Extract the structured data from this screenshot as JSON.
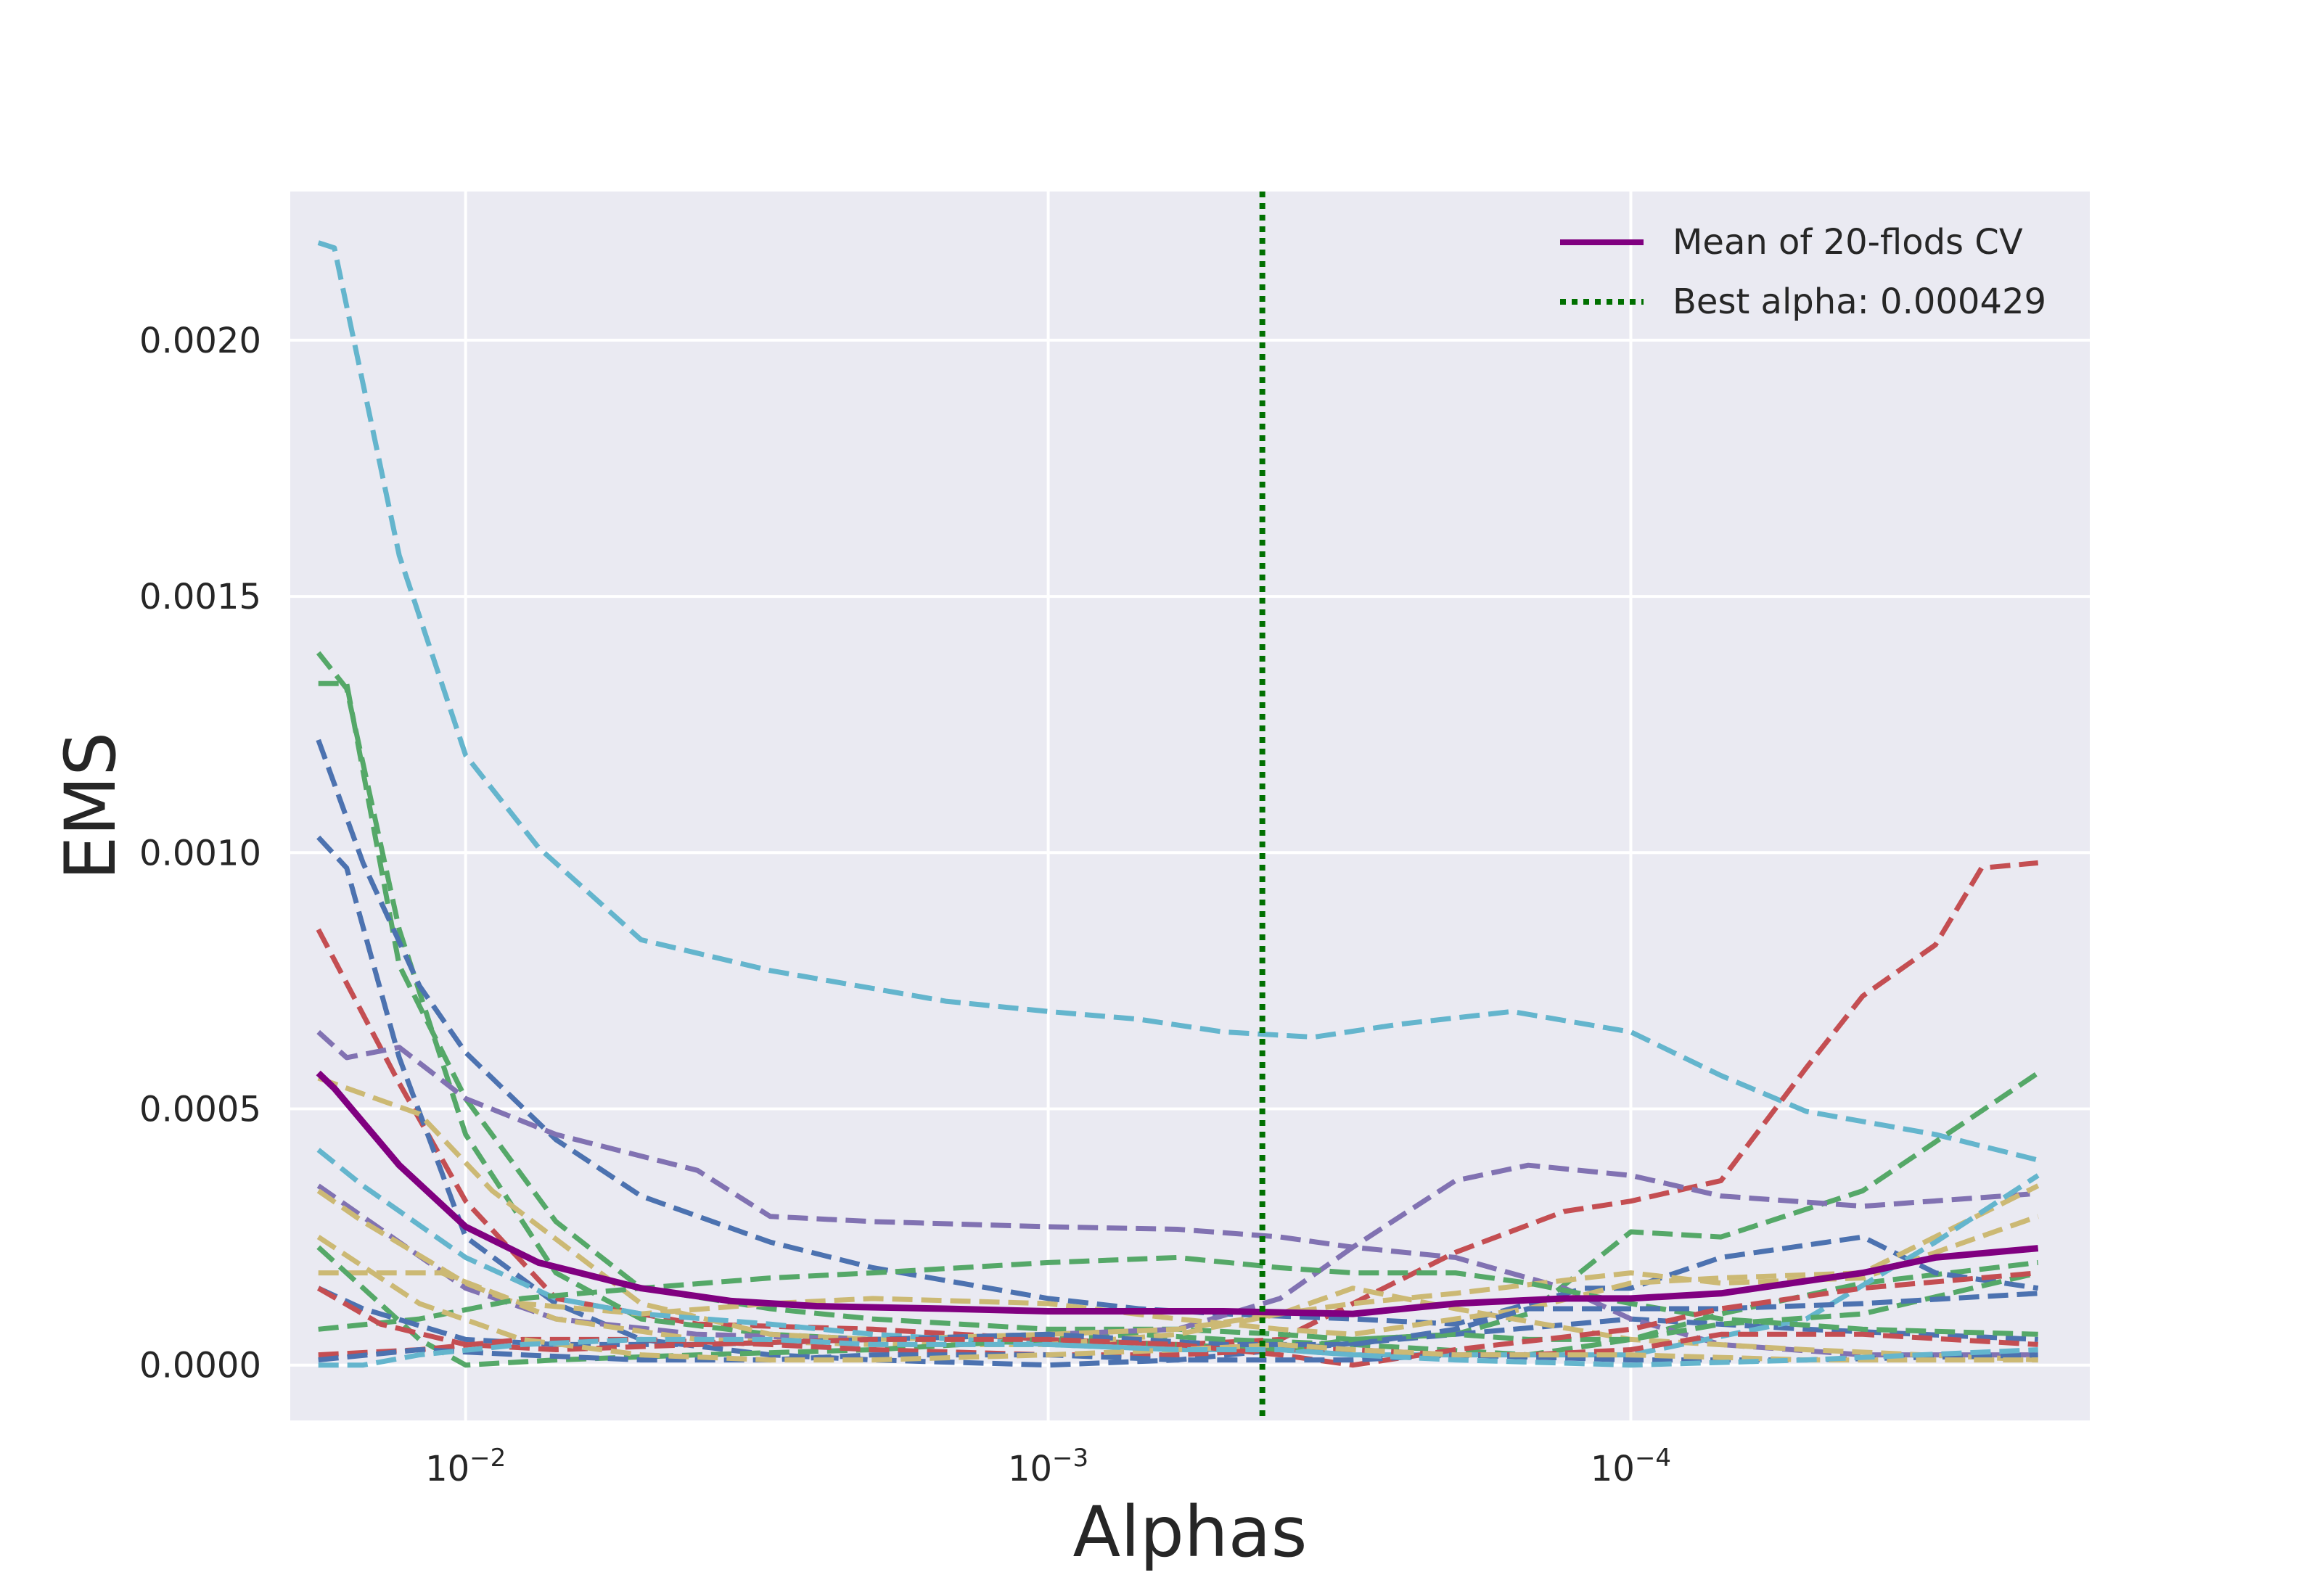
{
  "chart_data": {
    "type": "line",
    "xscale": "log",
    "x_reversed": true,
    "xlim": [
      0.02,
      1.63e-05
    ],
    "ylim": [
      -0.000108,
      0.00229
    ],
    "grid": true,
    "xlabel": "Alphas",
    "ylabel": "EMS",
    "x_ticks": [
      {
        "value": 0.01,
        "base": "10",
        "exp": "−2"
      },
      {
        "value": 0.001,
        "base": "10",
        "exp": "−3"
      },
      {
        "value": 0.0001,
        "base": "10",
        "exp": "−4"
      }
    ],
    "y_ticks": [
      {
        "value": 0.0,
        "label": "0.0000"
      },
      {
        "value": 0.0005,
        "label": "0.0005"
      },
      {
        "value": 0.001,
        "label": "0.0010"
      },
      {
        "value": 0.0015,
        "label": "0.0015"
      },
      {
        "value": 0.002,
        "label": "0.0020"
      }
    ],
    "legend": {
      "placement": "top-right",
      "entries": [
        {
          "label": "Mean of 20-flods CV",
          "style": "solid",
          "color": "#800080"
        },
        {
          "label": "Best alpha: 0.000429",
          "style": "dotted",
          "color": "#007000"
        }
      ]
    },
    "best_alpha": 0.000429,
    "mean_series": {
      "color": "#800080",
      "x": [
        0.0179,
        0.0168,
        0.013,
        0.01,
        0.0075,
        0.005,
        0.0035,
        0.0025,
        0.0015,
        0.001,
        0.0007,
        0.0005,
        0.0003,
        0.0002,
        0.00013,
        0.0001,
        7e-05,
        4e-05,
        3e-05,
        2e-05
      ],
      "y": [
        0.00057,
        0.00054,
        0.00039,
        0.00027,
        0.0002,
        0.00015,
        0.000125,
        0.000115,
        0.00011,
        0.000105,
        0.000105,
        0.000105,
        0.0001,
        0.00012,
        0.00013,
        0.00013,
        0.00014,
        0.00018,
        0.00021,
        0.000228
      ]
    },
    "fold_series": [
      {
        "color": "#64b5cd",
        "x": [
          0.0179,
          0.0168,
          0.013,
          0.01,
          0.0075,
          0.005,
          0.003,
          0.0015,
          0.001,
          0.0007,
          0.0005,
          0.00035,
          0.00025,
          0.00016,
          0.0001,
          7e-05,
          5e-05,
          3e-05,
          2e-05
        ],
        "y": [
          0.00219,
          0.00218,
          0.00158,
          0.00119,
          0.00101,
          0.00083,
          0.00077,
          0.00071,
          0.00069,
          0.000675,
          0.00065,
          0.00064,
          0.000665,
          0.00069,
          0.00065,
          0.000565,
          0.000495,
          0.00045,
          0.0004
        ]
      },
      {
        "color": "#c44e52",
        "x": [
          0.0179,
          0.013,
          0.01,
          0.007,
          0.004,
          0.002,
          0.001,
          0.0006,
          0.0004,
          0.0003,
          0.0002,
          0.00013,
          0.0001,
          7e-05,
          5e-05,
          4e-05,
          3e-05,
          2.5e-05,
          2e-05
        ],
        "y": [
          0.00085,
          0.00055,
          0.00032,
          0.00013,
          8e-05,
          7e-05,
          5e-05,
          4e-05,
          5e-05,
          0.00012,
          0.00022,
          0.0003,
          0.00032,
          0.00036,
          0.00058,
          0.00072,
          0.00082,
          0.00097,
          0.00098
        ]
      },
      {
        "color": "#55a868",
        "x": [
          0.0179,
          0.016,
          0.013,
          0.01,
          0.007,
          0.005,
          0.003,
          0.002,
          0.001,
          0.0007,
          0.0005,
          0.0003,
          0.00015,
          0.0001,
          7e-05,
          4e-05,
          2e-05
        ],
        "y": [
          0.00139,
          0.00132,
          0.00085,
          0.00045,
          0.00018,
          9e-05,
          6e-05,
          5e-05,
          5e-05,
          6e-05,
          5e-05,
          4e-05,
          2e-05,
          5e-05,
          0.0001,
          0.00016,
          0.0002
        ]
      },
      {
        "color": "#55a868",
        "x": [
          0.0179,
          0.016,
          0.013,
          0.01,
          0.007,
          0.005,
          0.003,
          0.002,
          0.001,
          0.0006,
          0.0004,
          0.0003,
          0.0002,
          0.00015,
          0.0001,
          7e-05,
          4e-05,
          2e-05
        ],
        "y": [
          0.00133,
          0.00133,
          0.00078,
          0.00052,
          0.00028,
          0.00015,
          0.00011,
          9e-05,
          7e-05,
          7e-05,
          6e-05,
          5e-05,
          6e-05,
          0.0001,
          0.00026,
          0.00025,
          0.00034,
          0.00057
        ]
      },
      {
        "color": "#4c72b0",
        "x": [
          0.0179,
          0.015,
          0.012,
          0.01,
          0.007,
          0.005,
          0.003,
          0.002,
          0.001,
          0.0007,
          0.0005,
          0.0003,
          0.0002,
          0.00012,
          0.0001,
          7e-05,
          4e-05,
          3e-05,
          2e-05
        ],
        "y": [
          0.00122,
          0.00098,
          0.00074,
          0.00061,
          0.00044,
          0.00033,
          0.00024,
          0.00019,
          0.00013,
          0.00011,
          0.0001,
          9e-05,
          8e-05,
          0.00015,
          0.00015,
          0.00021,
          0.00025,
          0.00018,
          0.00015
        ]
      },
      {
        "color": "#4c72b0",
        "x": [
          0.0179,
          0.016,
          0.013,
          0.01,
          0.007,
          0.005,
          0.003,
          0.002,
          0.001,
          0.0006,
          0.0004,
          0.0002,
          0.0001,
          5e-05,
          2e-05
        ],
        "y": [
          0.00103,
          0.00097,
          0.0006,
          0.00025,
          0.00012,
          5e-05,
          2e-05,
          1e-05,
          0.0,
          1e-05,
          3e-05,
          6e-05,
          9e-05,
          7e-05,
          5e-05
        ]
      },
      {
        "color": "#8172b2",
        "x": [
          0.0179,
          0.016,
          0.013,
          0.01,
          0.007,
          0.004,
          0.003,
          0.002,
          0.001,
          0.0006,
          0.0004,
          0.0003,
          0.0002,
          0.00015,
          0.0001,
          7e-05,
          4e-05,
          2e-05
        ],
        "y": [
          0.00065,
          0.0006,
          0.00062,
          0.00052,
          0.00045,
          0.00038,
          0.00029,
          0.00028,
          0.00027,
          0.000265,
          0.00025,
          0.00023,
          0.00036,
          0.00039,
          0.00037,
          0.00033,
          0.00031,
          0.000335
        ]
      },
      {
        "color": "#8172b2",
        "x": [
          0.0179,
          0.013,
          0.01,
          0.007,
          0.004,
          0.002,
          0.001,
          0.0006,
          0.0004,
          0.0003,
          0.0002,
          0.00013,
          0.0001,
          7e-05,
          4e-05,
          2e-05
        ],
        "y": [
          0.00035,
          0.00024,
          0.00015,
          9e-05,
          6e-05,
          5e-05,
          6e-05,
          7e-05,
          0.00013,
          0.00023,
          0.00021,
          0.00015,
          9e-05,
          4e-05,
          2e-05,
          2e-05
        ]
      },
      {
        "color": "#ccb974",
        "x": [
          0.0179,
          0.015,
          0.01,
          0.007,
          0.004,
          0.002,
          0.001,
          0.0006,
          0.0004,
          0.0003,
          0.0002,
          0.00012,
          0.0001,
          7e-05,
          4e-05,
          2e-05
        ],
        "y": [
          0.00034,
          0.00028,
          0.00016,
          9e-05,
          5e-05,
          4e-05,
          4e-05,
          6e-05,
          0.0001,
          0.00012,
          0.00014,
          0.00017,
          0.00018,
          0.00016,
          0.00017,
          0.00029
        ]
      },
      {
        "color": "#ccb974",
        "x": [
          0.0179,
          0.015,
          0.011,
          0.008,
          0.005,
          0.003,
          0.002,
          0.001,
          0.0006,
          0.0004,
          0.0003,
          0.0002,
          0.00015,
          0.0001,
          7e-05,
          4e-05,
          2e-05
        ],
        "y": [
          0.00018,
          0.00018,
          0.00018,
          0.00012,
          0.0001,
          0.00012,
          0.00013,
          0.00012,
          9e-05,
          7e-05,
          6e-05,
          9e-05,
          0.00011,
          0.00016,
          0.00017,
          0.00018,
          0.00035
        ]
      },
      {
        "color": "#ccb974",
        "x": [
          0.0179,
          0.012,
          0.009,
          0.005,
          0.003,
          0.002,
          0.001,
          0.0006,
          0.0004,
          0.0003,
          0.0002,
          0.0001,
          5e-05,
          2e-05
        ],
        "y": [
          0.00056,
          0.00049,
          0.00034,
          0.00012,
          6e-05,
          5e-05,
          6e-05,
          7e-05,
          0.0001,
          0.00015,
          0.00011,
          5e-05,
          3e-05,
          1e-05
        ]
      },
      {
        "color": "#64b5cd",
        "x": [
          0.0179,
          0.015,
          0.01,
          0.007,
          0.005,
          0.003,
          0.002,
          0.001,
          0.0006,
          0.0004,
          0.0003,
          0.0002,
          0.0001,
          5e-05,
          3e-05,
          2e-05
        ],
        "y": [
          0.00042,
          0.00035,
          0.00021,
          0.00013,
          0.0001,
          8e-05,
          6e-05,
          4e-05,
          3e-05,
          3e-05,
          2e-05,
          2e-05,
          2e-05,
          9e-05,
          0.00024,
          0.00037
        ]
      },
      {
        "color": "#55a868",
        "x": [
          0.0179,
          0.012,
          0.008,
          0.005,
          0.003,
          0.002,
          0.001,
          0.0006,
          0.0004,
          0.0003,
          0.0002,
          0.00015,
          0.0001,
          7e-05,
          4e-05,
          2e-05
        ],
        "y": [
          7e-05,
          9e-05,
          0.00013,
          0.00015,
          0.00017,
          0.00018,
          0.0002,
          0.00021,
          0.00019,
          0.00018,
          0.00018,
          0.00016,
          0.00012,
          9e-05,
          7e-05,
          6e-05
        ]
      },
      {
        "color": "#55a868",
        "x": [
          0.0179,
          0.012,
          0.01,
          0.007,
          0.004,
          0.002,
          0.001,
          0.0006,
          0.0004,
          0.0003,
          0.0002,
          0.00015,
          0.0001,
          7e-05,
          4e-05,
          2e-05
        ],
        "y": [
          0.00023,
          5e-05,
          0.0,
          1e-05,
          2e-05,
          3e-05,
          5e-05,
          4e-05,
          3e-05,
          5e-05,
          6e-05,
          5e-05,
          5e-05,
          8e-05,
          0.0001,
          0.00018
        ]
      },
      {
        "color": "#4c72b0",
        "x": [
          0.0179,
          0.015,
          0.01,
          0.007,
          0.004,
          0.002,
          0.001,
          0.0007,
          0.0005,
          0.0003,
          0.0002,
          0.00015,
          0.0001,
          7e-05,
          4e-05,
          2e-05
        ],
        "y": [
          0.00015,
          0.00011,
          5e-05,
          4e-05,
          4e-05,
          5e-05,
          6e-05,
          5e-05,
          4e-05,
          4e-05,
          7e-05,
          0.00011,
          0.00011,
          0.00011,
          0.00012,
          0.00014
        ]
      },
      {
        "color": "#c44e52",
        "x": [
          0.0179,
          0.014,
          0.01,
          0.007,
          0.004,
          0.002,
          0.001,
          0.0006,
          0.0004,
          0.0003,
          0.0002,
          0.0001,
          7e-05,
          4e-05,
          2e-05
        ],
        "y": [
          0.00015,
          8e-05,
          4e-05,
          3e-05,
          4e-05,
          5e-05,
          5e-05,
          4e-05,
          2e-05,
          0.0,
          3e-05,
          7e-05,
          0.00011,
          0.00015,
          0.00018
        ]
      },
      {
        "color": "#c44e52",
        "x": [
          0.0179,
          0.012,
          0.008,
          0.005,
          0.003,
          0.002,
          0.001,
          0.0006,
          0.0004,
          0.0003,
          0.0002,
          0.00015,
          0.0001,
          7e-05,
          4e-05,
          2e-05
        ],
        "y": [
          2e-05,
          3e-05,
          5e-05,
          5e-05,
          4e-05,
          3e-05,
          2e-05,
          2e-05,
          3e-05,
          3e-05,
          2e-05,
          2e-05,
          3e-05,
          6e-05,
          6e-05,
          4e-05
        ]
      },
      {
        "color": "#4c72b0",
        "x": [
          0.0179,
          0.012,
          0.008,
          0.005,
          0.003,
          0.002,
          0.001,
          0.0006,
          0.0004,
          0.0003,
          0.0002,
          0.0001,
          5e-05,
          2e-05
        ],
        "y": [
          1e-05,
          3e-05,
          2e-05,
          1e-05,
          1e-05,
          2e-05,
          2e-05,
          1e-05,
          1e-05,
          1e-05,
          2e-05,
          1e-05,
          1e-05,
          2e-05
        ]
      },
      {
        "color": "#ccb974",
        "x": [
          0.0179,
          0.012,
          0.008,
          0.005,
          0.003,
          0.002,
          0.001,
          0.0006,
          0.0004,
          0.0003,
          0.0002,
          0.0001,
          5e-05,
          2e-05
        ],
        "y": [
          0.00025,
          0.00012,
          5e-05,
          2e-05,
          1e-05,
          1e-05,
          2e-05,
          3e-05,
          4e-05,
          3e-05,
          2e-05,
          2e-05,
          1e-05,
          1e-05
        ]
      },
      {
        "color": "#64b5cd",
        "x": [
          0.0179,
          0.015,
          0.012,
          0.008,
          0.005,
          0.003,
          0.002,
          0.001,
          0.0006,
          0.0004,
          0.0003,
          0.0002,
          0.0001,
          5e-05,
          2e-05
        ],
        "y": [
          0.0,
          0.0,
          2e-05,
          4e-05,
          5e-05,
          5e-05,
          4e-05,
          4e-05,
          3e-05,
          3e-05,
          2e-05,
          1e-05,
          0.0,
          1e-05,
          3e-05
        ]
      }
    ]
  }
}
